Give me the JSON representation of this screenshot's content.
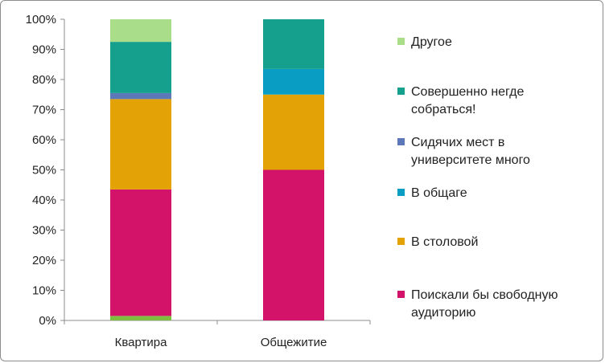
{
  "chart_data": {
    "type": "bar",
    "stacked": true,
    "percent": true,
    "categories": [
      "Квартира",
      "Общежитие"
    ],
    "series": [
      {
        "name": "",
        "color": "#7dbf3f",
        "values": [
          1.5,
          0
        ]
      },
      {
        "name": "Поискали бы свободную аудиторию",
        "color": "#d3126a",
        "values": [
          42,
          50
        ]
      },
      {
        "name": "В столовой",
        "color": "#e3a206",
        "values": [
          30,
          25
        ]
      },
      {
        "name": "В общаге",
        "color": "#0a9dc4",
        "values": [
          0,
          8.5
        ]
      },
      {
        "name": "Сидячих мест в университете много",
        "color": "#5d78b8",
        "values": [
          2,
          0
        ]
      },
      {
        "name": "Совершенно негде собраться!",
        "color": "#14a08c",
        "values": [
          17,
          16.5
        ]
      },
      {
        "name": "Другое",
        "color": "#a9dd8a",
        "values": [
          7.5,
          0
        ]
      }
    ],
    "yticks": [
      "0%",
      "10%",
      "20%",
      "30%",
      "40%",
      "50%",
      "60%",
      "70%",
      "80%",
      "90%",
      "100%"
    ],
    "ylim": [
      0,
      100
    ],
    "legend": {
      "position": "right",
      "entries": [
        {
          "lines": [
            "Другое"
          ],
          "color": "#a9dd8a"
        },
        {
          "lines": [
            "Совершенно негде",
            "собраться!"
          ],
          "color": "#14a08c"
        },
        {
          "lines": [
            "Сидячих мест в",
            "университете много"
          ],
          "color": "#5d78b8"
        },
        {
          "lines": [
            "В общаге"
          ],
          "color": "#0a9dc4"
        },
        {
          "lines": [
            "В столовой"
          ],
          "color": "#e3a206"
        },
        {
          "lines": [
            "Поискали бы свободную",
            "аудиторию"
          ],
          "color": "#d3126a"
        }
      ]
    },
    "grid": false
  }
}
